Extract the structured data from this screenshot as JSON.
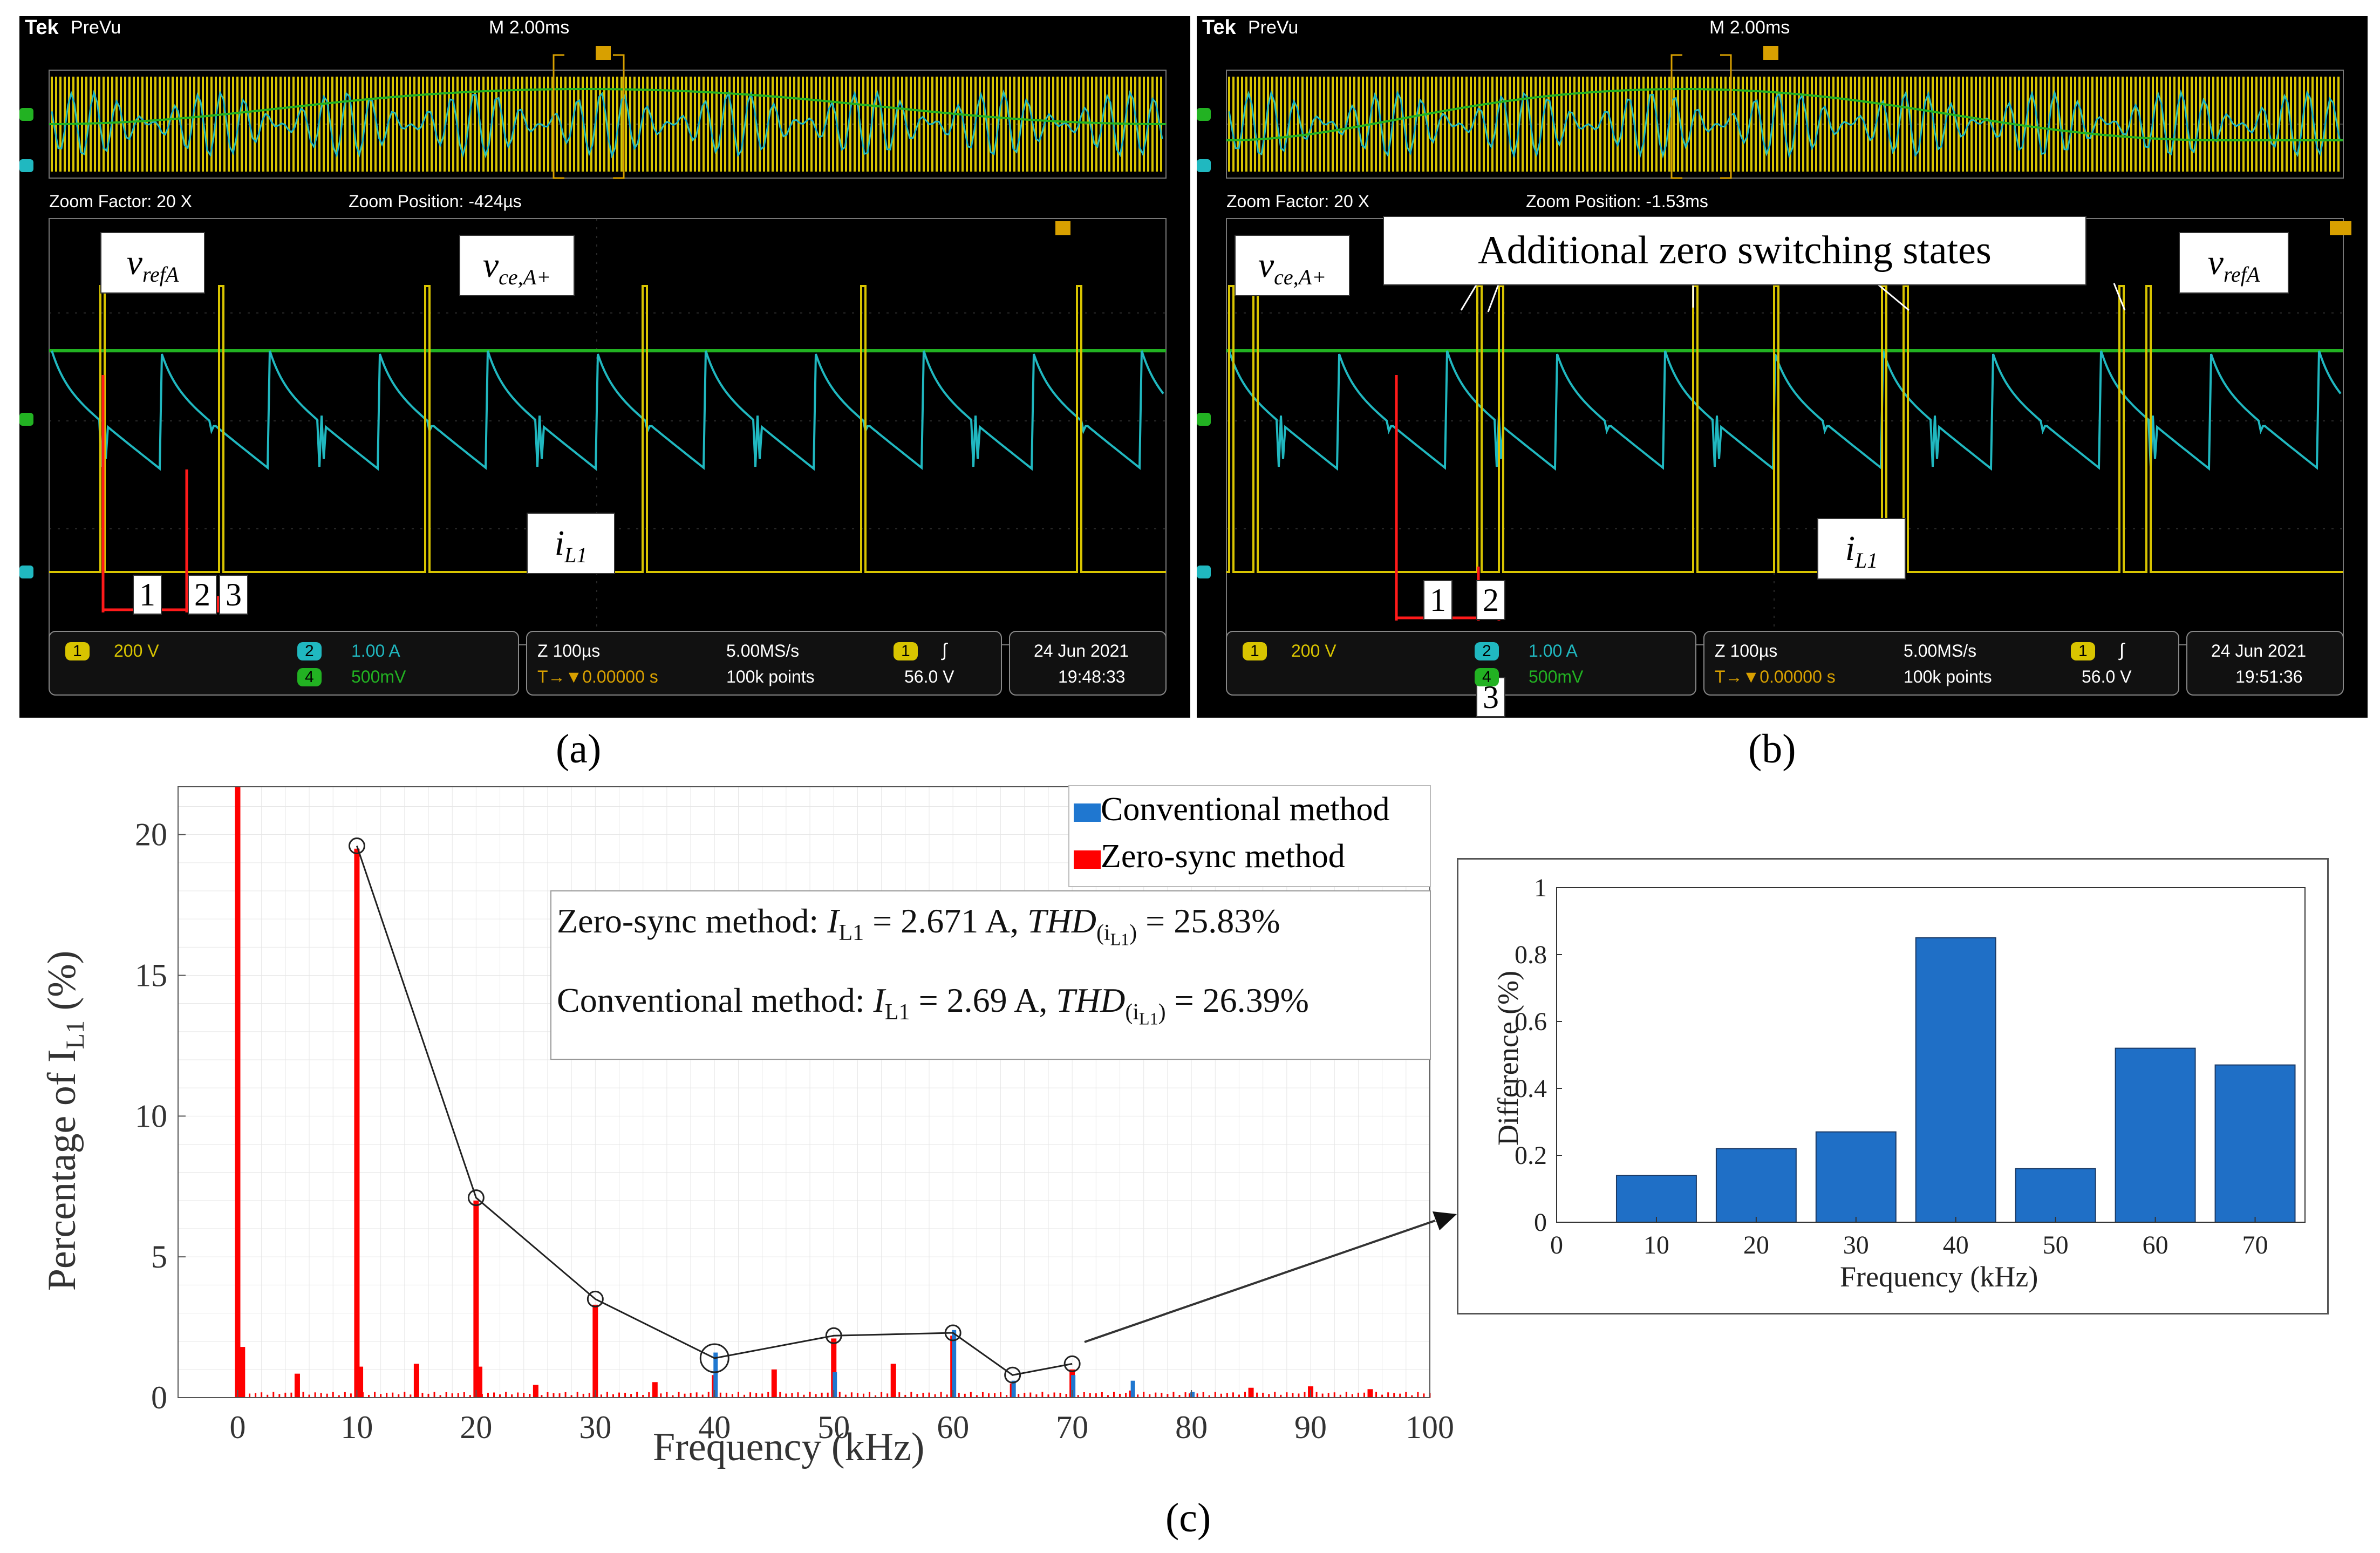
{
  "scope_a": {
    "brand": "Tek",
    "mode": "PreVu",
    "timebase": "M 2.00ms",
    "zoom_factor": "Zoom Factor: 20 X",
    "zoom_position": "Zoom Position: -424µs",
    "labels": {
      "vref": "v",
      "vref_sub": "refA",
      "vce": "v",
      "vce_sub": "ce,A+",
      "il": "i",
      "il_sub": "L1"
    },
    "intervals": [
      "1",
      "2",
      "3"
    ],
    "footer": {
      "ch1_num": "1",
      "ch1_scale": "200 V",
      "ch2_num": "2",
      "ch2_scale": "1.00 A",
      "ch4_num": "4",
      "ch4_scale": "500mV",
      "zoom": "Z 100µs",
      "trig_pos": "T→▼0.00000 s",
      "rate": "5.00MS/s",
      "points": "100k points",
      "trig_ch": "1",
      "trig_sym": "∫",
      "trig_level": "56.0 V",
      "date": "24 Jun 2021",
      "time": "19:48:33"
    },
    "caption": "(a)"
  },
  "scope_b": {
    "brand": "Tek",
    "mode": "PreVu",
    "timebase": "M 2.00ms",
    "zoom_factor": "Zoom Factor: 20 X",
    "zoom_position": "Zoom Position: -1.53ms",
    "labels": {
      "vref": "v",
      "vref_sub": "refA",
      "vce": "v",
      "vce_sub": "ce,A+",
      "il": "i",
      "il_sub": "L1"
    },
    "annotation": "Additional zero switching states",
    "intervals": [
      "1",
      "2",
      "3"
    ],
    "footer": {
      "ch1_num": "1",
      "ch1_scale": "200 V",
      "ch2_num": "2",
      "ch2_scale": "1.00 A",
      "ch4_num": "4",
      "ch4_scale": "500mV",
      "zoom": "Z 100µs",
      "trig_pos": "T→▼0.00000 s",
      "rate": "5.00MS/s",
      "points": "100k points",
      "trig_ch": "1",
      "trig_sym": "∫",
      "trig_level": "56.0 V",
      "date": "24 Jun 2021",
      "time": "19:51:36"
    },
    "caption": "(b)"
  },
  "chart_data": [
    {
      "id": "spectrum",
      "type": "bar",
      "title": "",
      "xlabel": "Frequency (kHz)",
      "ylabel_prefix": "Percentage of I",
      "ylabel_sub": "L1",
      "ylabel_suffix": " (%)",
      "xlim": [
        -5,
        100
      ],
      "ylim": [
        0,
        21.7
      ],
      "xticks": [
        0,
        10,
        20,
        30,
        40,
        50,
        60,
        70,
        80,
        90,
        100
      ],
      "yticks": [
        0,
        5,
        10,
        15,
        20
      ],
      "legend": [
        {
          "name": "Conventional method",
          "color": "#1f77d0"
        },
        {
          "name": "Zero-sync method",
          "color": "#ff0000"
        }
      ],
      "legend_position": "top-right",
      "series": [
        {
          "name": "Zero-sync method",
          "color": "#ff0000",
          "x": [
            0,
            0.4,
            5,
            10,
            10.3,
            15,
            20,
            20.3,
            25,
            30,
            35,
            40,
            45,
            50,
            55,
            60,
            65,
            70,
            75,
            80,
            85,
            90,
            95
          ],
          "values": [
            21.7,
            1.8,
            0.85,
            19.5,
            1.1,
            1.2,
            7.0,
            1.1,
            0.45,
            3.3,
            0.55,
            0.8,
            1.0,
            2.1,
            1.2,
            2.2,
            0.5,
            1.0,
            0.25,
            0.15,
            0.35,
            0.4,
            0.3
          ]
        },
        {
          "name": "Conventional method",
          "color": "#1f77d0",
          "x": [
            40,
            50,
            60,
            65,
            70,
            75,
            80
          ],
          "values": [
            1.6,
            0.9,
            2.4,
            0.6,
            0.8,
            0.6,
            0.2
          ]
        }
      ],
      "envelope": {
        "x": [
          10,
          20,
          30,
          40,
          50,
          60,
          65,
          70
        ],
        "values": [
          19.6,
          7.1,
          3.5,
          1.4,
          2.2,
          2.3,
          0.8,
          1.2
        ]
      },
      "info_lines": [
        {
          "lead": "Zero-sync method: ",
          "I": "I",
          "I_sub": "L1",
          "I_val": " = 2.671 A, ",
          "THD": "THD",
          "THD_sub": "(i",
          "THD_subsub": "L1",
          "THD_close": ")",
          "THD_val": " = 25.83%"
        },
        {
          "lead": "Conventional method: ",
          "I": "I",
          "I_sub": "L1",
          "I_val": " = 2.69 A, ",
          "THD": "THD",
          "THD_sub": "(i",
          "THD_subsub": "L1",
          "THD_close": ")",
          "THD_val": " = 26.39%"
        }
      ]
    },
    {
      "id": "difference",
      "type": "bar",
      "xlabel": "Frequency (kHz)",
      "ylabel": "Difference (%)",
      "xlim": [
        0,
        75
      ],
      "ylim": [
        0,
        1
      ],
      "xticks": [
        0,
        10,
        20,
        30,
        40,
        50,
        60,
        70
      ],
      "yticks": [
        0,
        0.2,
        0.4,
        0.6,
        0.8,
        1
      ],
      "ytick_labels": [
        "0",
        "0.2",
        "0.4",
        "0.6",
        "0.8",
        "1"
      ],
      "categories": [
        10,
        20,
        30,
        40,
        50,
        60,
        70
      ],
      "values": [
        0.14,
        0.22,
        0.27,
        0.85,
        0.16,
        0.52,
        0.47
      ],
      "color": "#1f6fc6"
    }
  ],
  "caption_c": "(c)"
}
